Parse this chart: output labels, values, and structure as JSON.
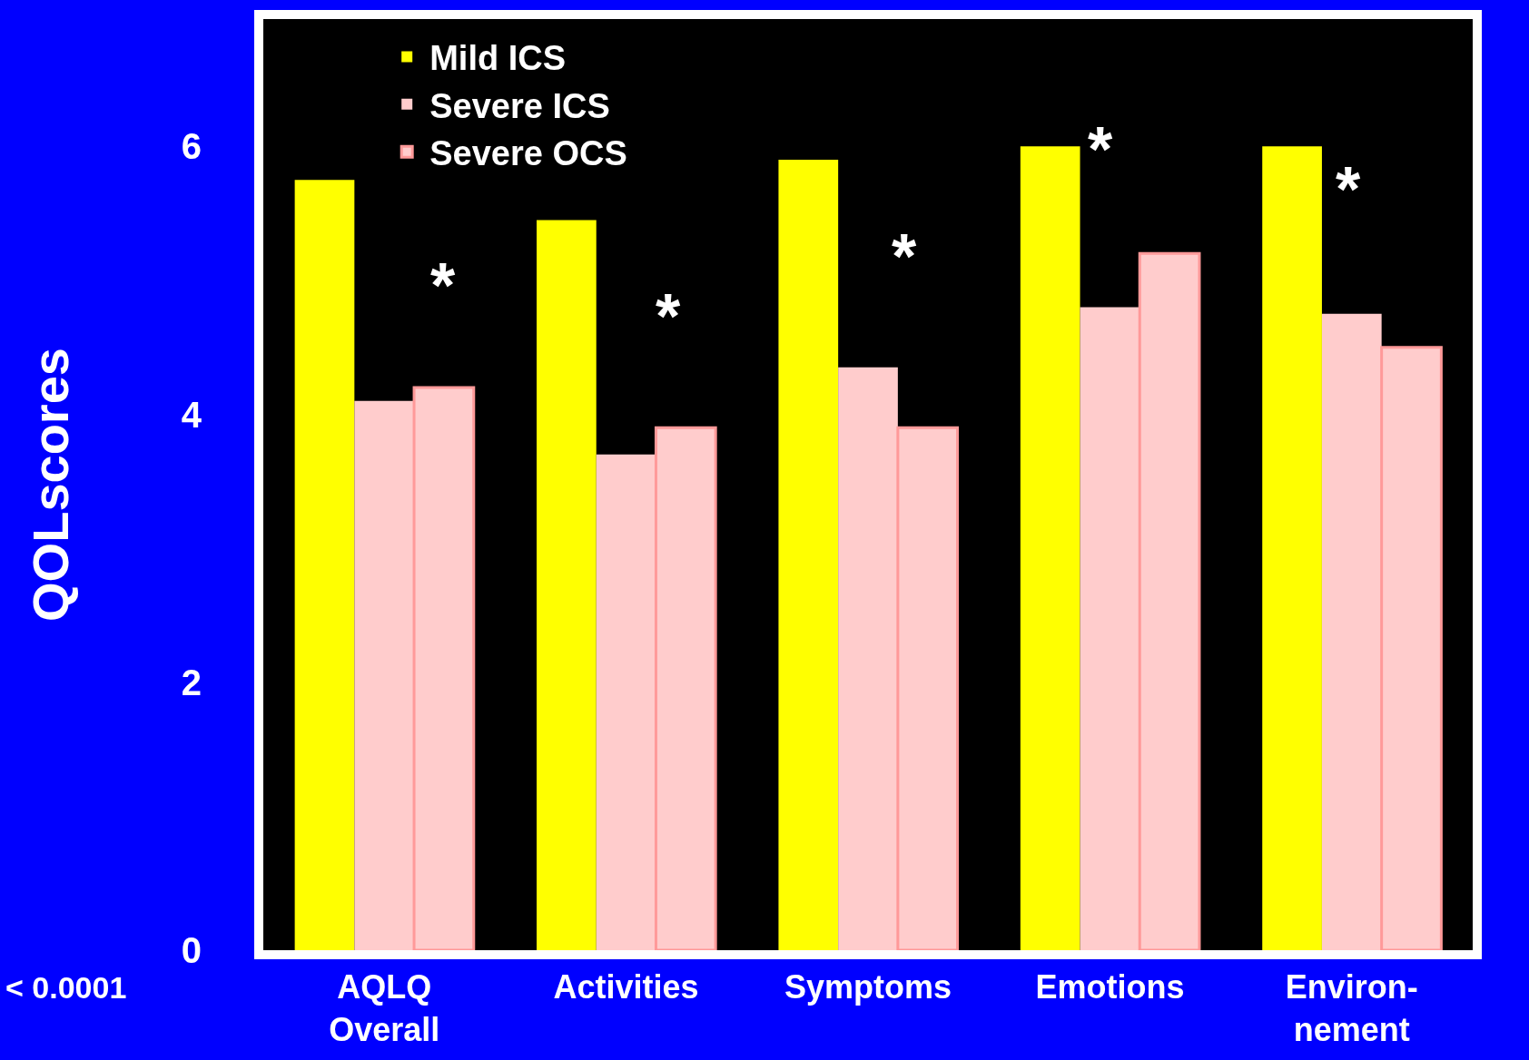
{
  "chart_data": {
    "type": "bar",
    "ylabel": "QOLscores",
    "categories": [
      "AQLQ\nOverall",
      "Activities",
      "Symptoms",
      "Emotions",
      "Environ-\nnement"
    ],
    "series": [
      {
        "name": "Mild ICS",
        "color": "#ffff00",
        "values": [
          5.75,
          5.45,
          5.9,
          6.0,
          6.0
        ]
      },
      {
        "name": "Severe ICS",
        "color": "#ffcccc",
        "values": [
          4.1,
          3.7,
          4.35,
          4.8,
          4.75
        ]
      },
      {
        "name": "Severe OCS",
        "color": "#ffcccc",
        "values": [
          4.2,
          3.9,
          3.9,
          5.2,
          4.5
        ]
      }
    ],
    "ylim": [
      0,
      6.95
    ],
    "yticks": [
      0,
      2,
      4,
      6
    ],
    "grid": false,
    "legend": "top left",
    "annotations": [
      "*",
      "*",
      "*",
      "*",
      "*",
      "< 0.0001"
    ]
  }
}
